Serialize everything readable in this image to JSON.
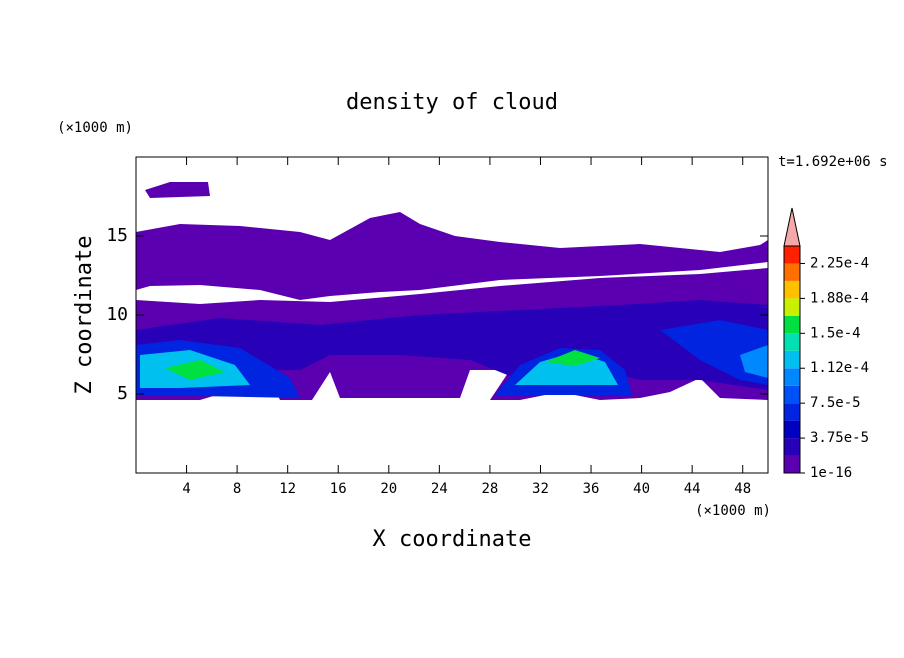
{
  "chart_data": {
    "type": "contour",
    "title": "density of cloud",
    "xlabel": "X coordinate",
    "ylabel": "Z coordinate",
    "xunit": "(×1000 m)",
    "yunit": "(×1000 m)",
    "annotation": "t=1.692e+06 s",
    "xlim": [
      0,
      50
    ],
    "xticks": [
      4,
      8,
      12,
      16,
      20,
      24,
      28,
      32,
      36,
      40,
      44,
      48
    ],
    "ylim": [
      0,
      20
    ],
    "yticks": [
      5,
      10,
      15
    ],
    "colorbar": {
      "levels": [
        1e-16,
        1.875e-05,
        3.75e-05,
        5.625e-05,
        7.5e-05,
        9.375e-05,
        0.0001125,
        0.00013125,
        0.00015,
        0.00016875,
        0.0001875,
        0.00020625,
        0.000225
      ],
      "colors": [
        "#5a00b0",
        "#2800b8",
        "#0000c0",
        "#0024e0",
        "#0050f8",
        "#0088ff",
        "#00c0f0",
        "#00e0b0",
        "#00e040",
        "#c8f000",
        "#ffc000",
        "#ff7000",
        "#ff2000"
      ],
      "ticks": [
        {
          "value": 1e-16,
          "label": "1e-16"
        },
        {
          "value": 3.75e-05,
          "label": "3.75e-5"
        },
        {
          "value": 7.5e-05,
          "label": "7.5e-5"
        },
        {
          "value": 0.0001125,
          "label": "1.12e-4"
        },
        {
          "value": 0.00015,
          "label": "1.5e-4"
        },
        {
          "value": 0.0001875,
          "label": "1.88e-4"
        },
        {
          "value": 0.000225,
          "label": "2.25e-4"
        }
      ]
    }
  }
}
